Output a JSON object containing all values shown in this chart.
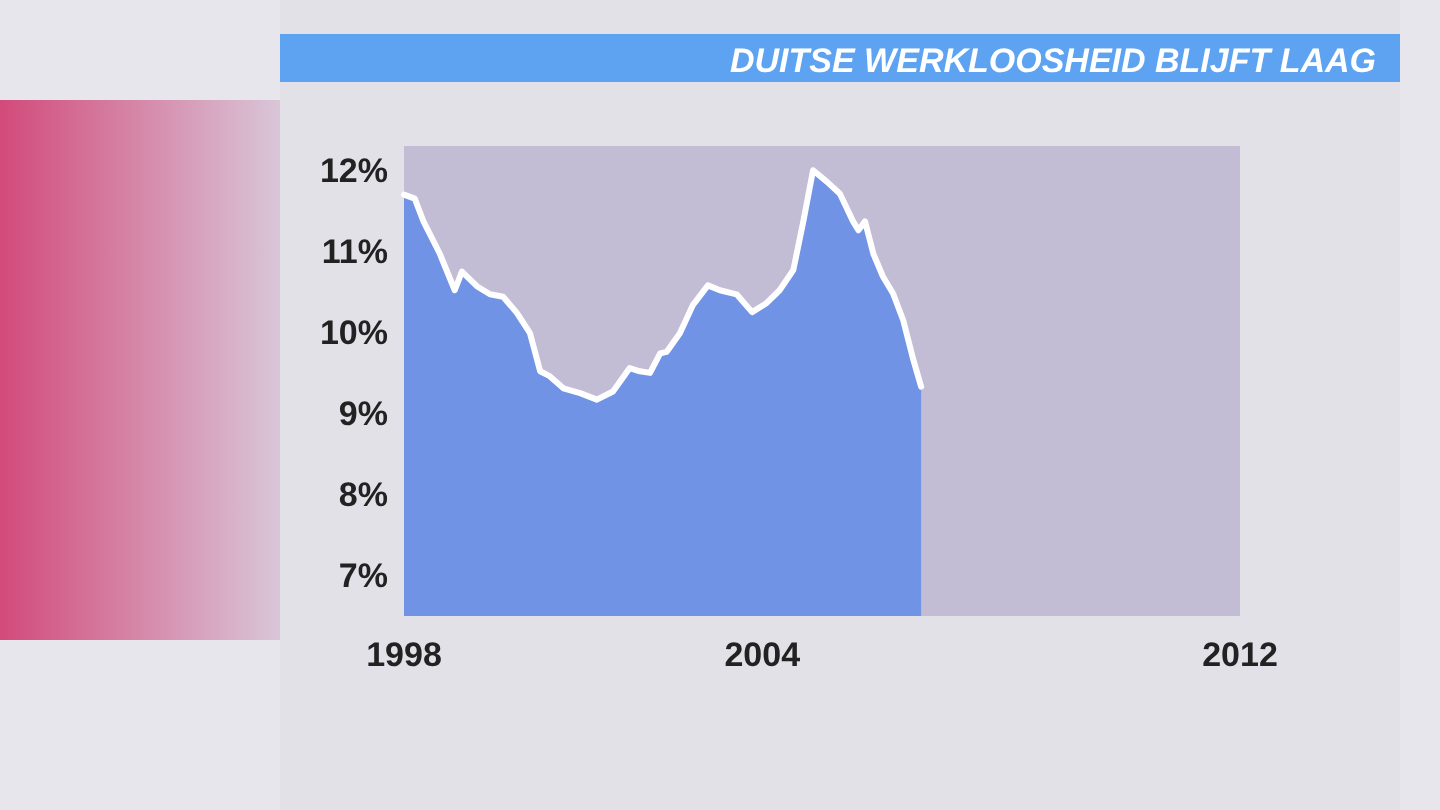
{
  "chart_data": {
    "type": "area",
    "title": "DUITSE WERKLOOSHEID BLIJFT LAAG",
    "xlim": [
      1998,
      2012
    ],
    "xticks": [
      1998,
      2004,
      2012
    ],
    "ylim": [
      6.5,
      12.3
    ],
    "yticks": [
      {
        "value": 7,
        "label": "7%"
      },
      {
        "value": 8,
        "label": "8%"
      },
      {
        "value": 9,
        "label": "9%"
      },
      {
        "value": 10,
        "label": "10%"
      },
      {
        "value": 11,
        "label": "11%"
      },
      {
        "value": 12,
        "label": "12%"
      }
    ],
    "grid": false,
    "series": [
      {
        "color": "#7093e6",
        "x": [
          1998.0,
          1998.18,
          1998.32,
          1998.6,
          1998.85,
          1998.97,
          1999.22,
          1999.44,
          1999.66,
          1999.89,
          2000.11,
          2000.28,
          2000.44,
          2000.67,
          2000.95,
          2001.23,
          2001.5,
          2001.78,
          2001.95,
          2002.12,
          2002.29,
          2002.4,
          2002.62,
          2002.84,
          2003.09,
          2003.29,
          2003.57,
          2003.83,
          2004.07,
          2004.29,
          2004.52,
          2004.69,
          2004.85,
          2005.08,
          2005.3,
          2005.52,
          2005.61,
          2005.72,
          2005.86,
          2006.02,
          2006.19,
          2006.36,
          2006.53,
          2006.66
        ],
        "values": [
          11.7,
          11.65,
          11.38,
          10.97,
          10.52,
          10.75,
          10.57,
          10.47,
          10.44,
          10.24,
          9.99,
          9.52,
          9.46,
          9.31,
          9.25,
          9.17,
          9.27,
          9.56,
          9.52,
          9.5,
          9.74,
          9.76,
          9.99,
          10.34,
          10.58,
          10.52,
          10.47,
          10.25,
          10.36,
          10.52,
          10.77,
          11.38,
          12.0,
          11.86,
          11.71,
          11.37,
          11.26,
          11.37,
          10.97,
          10.69,
          10.48,
          10.15,
          9.66,
          9.33
        ]
      }
    ]
  }
}
